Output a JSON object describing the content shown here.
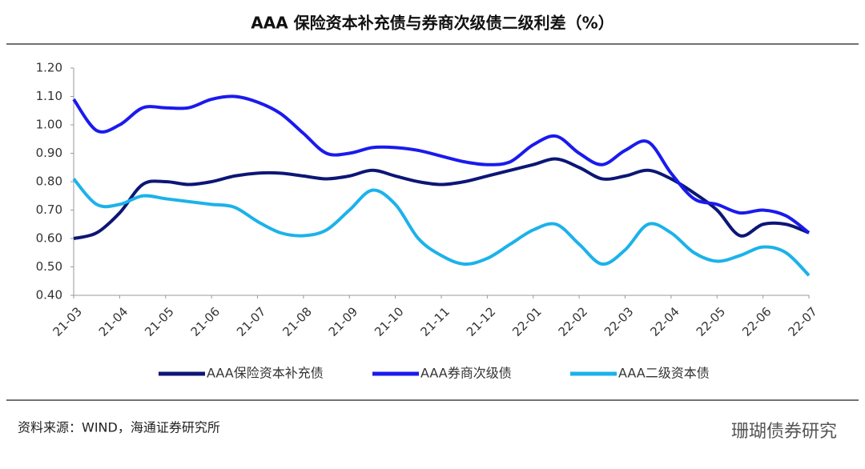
{
  "chart_data": {
    "type": "line",
    "title": "AAA 保险资本补充债与券商次级债二级利差（%）",
    "categories": [
      "21-03",
      null,
      "21-04",
      null,
      "21-05",
      null,
      "21-06",
      null,
      "21-07",
      null,
      "21-08",
      null,
      "21-09",
      null,
      "21-10",
      null,
      "21-11",
      null,
      "21-12",
      null,
      "22-01",
      null,
      "22-02",
      null,
      "22-03",
      null,
      "22-04",
      null,
      "22-05",
      null,
      "22-06",
      null,
      "22-07"
    ],
    "series": [
      {
        "name": "AAA保险资本补充债",
        "color": "#0c1675",
        "values": [
          0.6,
          0.62,
          0.69,
          0.79,
          0.8,
          0.79,
          0.8,
          0.82,
          0.83,
          0.83,
          0.82,
          0.81,
          0.82,
          0.84,
          0.82,
          0.8,
          0.79,
          0.8,
          0.82,
          0.84,
          0.86,
          0.88,
          0.85,
          0.81,
          0.82,
          0.84,
          0.81,
          0.76,
          0.7,
          0.61,
          0.65,
          0.65,
          0.62
        ]
      },
      {
        "name": "AAA券商次级债",
        "color": "#1a1aee",
        "values": [
          1.09,
          0.98,
          1.0,
          1.06,
          1.06,
          1.06,
          1.09,
          1.1,
          1.08,
          1.04,
          0.97,
          0.9,
          0.9,
          0.92,
          0.92,
          0.91,
          0.89,
          0.87,
          0.86,
          0.87,
          0.93,
          0.96,
          0.9,
          0.86,
          0.91,
          0.94,
          0.83,
          0.74,
          0.72,
          0.69,
          0.7,
          0.68,
          0.62
        ]
      },
      {
        "name": "AAA二级资本债",
        "color": "#1cb2ea",
        "values": [
          0.81,
          0.72,
          0.72,
          0.75,
          0.74,
          0.73,
          0.72,
          0.71,
          0.66,
          0.62,
          0.61,
          0.63,
          0.7,
          0.77,
          0.72,
          0.6,
          0.54,
          0.51,
          0.53,
          0.58,
          0.63,
          0.65,
          0.58,
          0.51,
          0.56,
          0.65,
          0.62,
          0.55,
          0.52,
          0.54,
          0.57,
          0.55,
          0.47
        ]
      }
    ],
    "ylim": [
      0.4,
      1.2
    ],
    "yticks": [
      {
        "value": 0.4,
        "label": "0.40"
      },
      {
        "value": 0.5,
        "label": "0.50"
      },
      {
        "value": 0.6,
        "label": "0.60"
      },
      {
        "value": 0.7,
        "label": "0.70"
      },
      {
        "value": 0.8,
        "label": "0.80"
      },
      {
        "value": 0.9,
        "label": "0.90"
      },
      {
        "value": 1.0,
        "label": "1.00"
      },
      {
        "value": 1.1,
        "label": "1.10"
      },
      {
        "value": 1.2,
        "label": "1.20"
      }
    ],
    "legend": "bottom",
    "source": "资料来源：WIND，海通证券研究所",
    "watermark": "珊瑚债券研究"
  }
}
